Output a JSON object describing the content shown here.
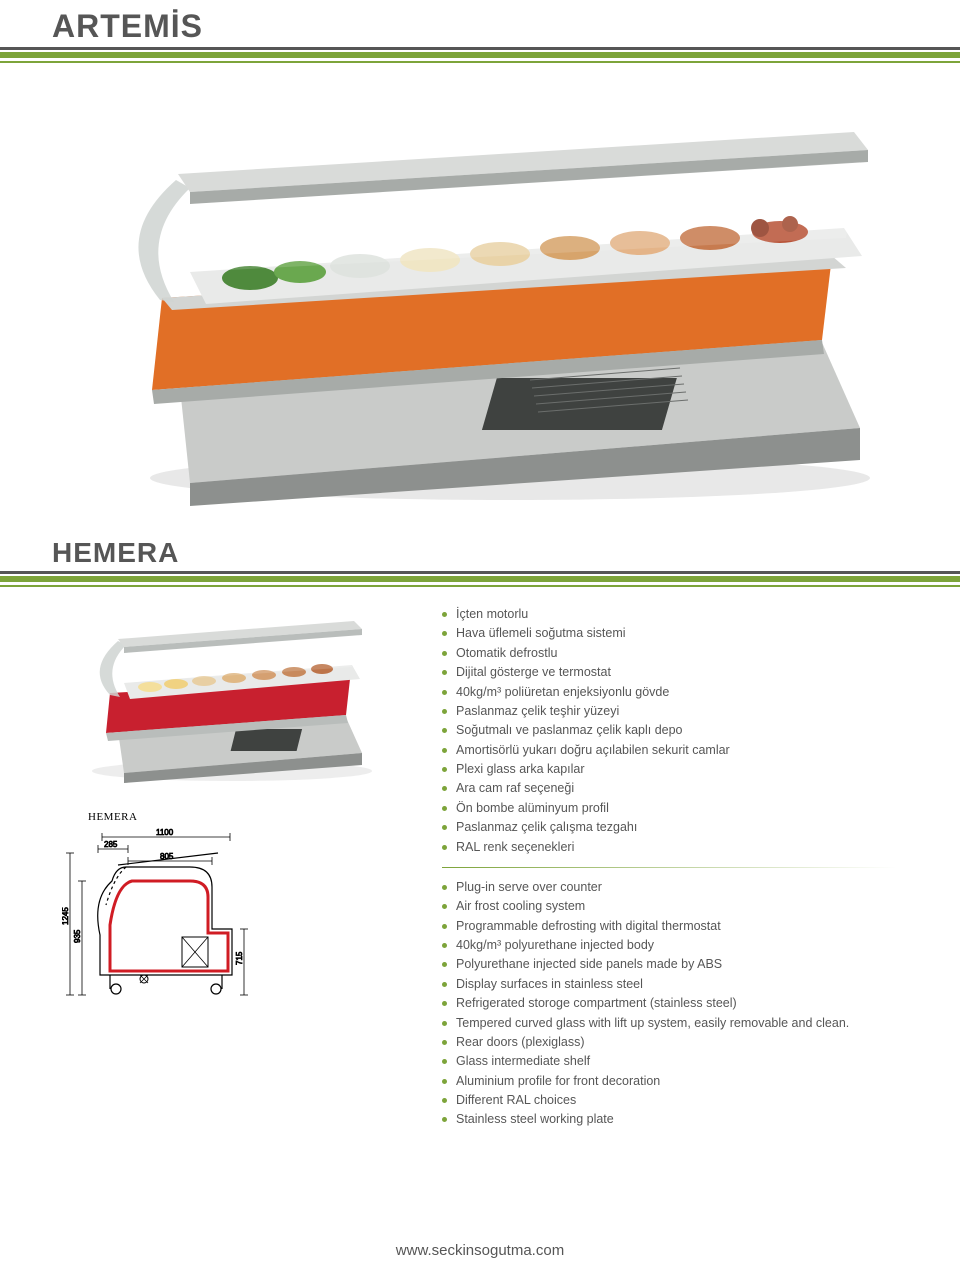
{
  "colors": {
    "accent_green": "#7da43a",
    "text": "#565656",
    "rule_dark": "#565656",
    "hero_orange": "#e16f26",
    "hero_gray": "#a7aba8",
    "hero_darkgray": "#6f7472",
    "hemera_red": "#c8202f",
    "hemera_gray": "#b9bdbb",
    "dim_line": "#000000",
    "dim_red": "#d01c24"
  },
  "heading_main": "ARTEMİS",
  "heading_sub": "HEMERA",
  "dim_label": "HEMERA",
  "dimensions": {
    "width_top": "1100",
    "ledge": "285",
    "canopy": "805",
    "height_outer": "1245",
    "height_inner": "935",
    "foot": "715"
  },
  "features_tr": [
    "İçten motorlu",
    "Hava üflemeli soğutma sistemi",
    "Otomatik defrostlu",
    "Dijital gösterge ve termostat",
    "40kg/m³ poliüretan enjeksiyonlu gövde",
    "Paslanmaz çelik teşhir yüzeyi",
    "Soğutmalı ve paslanmaz çelik kaplı depo",
    "Amortisörlü yukarı doğru açılabilen sekurit camlar",
    "Plexi glass arka kapılar",
    "Ara cam raf seçeneği",
    "Ön bombe alüminyum profil",
    "Paslanmaz çelik çalışma tezgahı",
    "RAL renk seçenekleri"
  ],
  "features_en": [
    "Plug-in serve over counter",
    "Air frost cooling system",
    "Programmable defrosting with digital thermostat",
    "40kg/m³ polyurethane injected body",
    "Polyurethane injected side panels made by ABS",
    "Display surfaces in stainless steel",
    "Refrigerated storoge compartment (stainless steel)",
    "Tempered curved glass with lift up system, easily removable and clean.",
    "Rear doors (plexiglass)",
    "Glass intermediate shelf",
    "Aluminium profile for front decoration",
    "Different RAL choices",
    "Stainless steel working plate"
  ],
  "url": "www.seckinsogutma.com"
}
